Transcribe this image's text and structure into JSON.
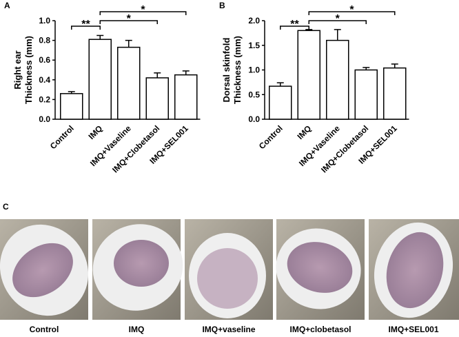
{
  "chart_data": [
    {
      "type": "bar",
      "panel_label": "A",
      "ylabel": [
        "Right ear",
        "Thickness (mm)"
      ],
      "categories": [
        "Control",
        "IMQ",
        "IMQ+Vaseline",
        "IMQ+Clobetasol",
        "IMQ+SEL001"
      ],
      "values": [
        0.26,
        0.81,
        0.73,
        0.42,
        0.45
      ],
      "errors": [
        0.02,
        0.04,
        0.07,
        0.05,
        0.04
      ],
      "color": "#ffffff",
      "edgecolor": "#000000",
      "ylim": [
        0,
        1
      ],
      "yticks": [
        {
          "value": 0,
          "label": "0.0"
        },
        0.2,
        0.4,
        0.6,
        0.8,
        {
          "value": 1,
          "label": "1.0"
        }
      ],
      "annotations": [
        {
          "text": "**",
          "between": [
            0,
            1
          ]
        },
        {
          "text": "*",
          "between": [
            1,
            3
          ]
        },
        {
          "text": "*",
          "between": [
            1,
            4
          ]
        }
      ]
    },
    {
      "type": "bar",
      "panel_label": "B",
      "ylabel": [
        "Dorsal skinfold",
        "Thickness (mm)"
      ],
      "categories": [
        "Control",
        "IMQ",
        "IMQ+Vaseline",
        "IMQ+Clobetasol",
        "IMQ+SEL001"
      ],
      "values": [
        0.67,
        1.8,
        1.6,
        1.0,
        1.04
      ],
      "errors": [
        0.07,
        0.02,
        0.22,
        0.05,
        0.08
      ],
      "color": "#ffffff",
      "edgecolor": "#000000",
      "ylim": [
        0,
        2
      ],
      "yticks": [
        {
          "value": 0,
          "label": "0.0"
        },
        0.5,
        {
          "value": 1,
          "label": "1.0"
        },
        1.5,
        {
          "value": 2,
          "label": "2.0"
        }
      ],
      "annotations": [
        {
          "text": "**",
          "between": [
            0,
            1
          ]
        },
        {
          "text": "*",
          "between": [
            1,
            3
          ]
        },
        {
          "text": "*",
          "between": [
            1,
            4
          ]
        }
      ]
    }
  ],
  "panel_c": {
    "label": "C",
    "captions": [
      "Control",
      "IMQ",
      "IMQ+vaseline",
      "IMQ+clobetasol",
      "IMQ+SEL001"
    ]
  }
}
